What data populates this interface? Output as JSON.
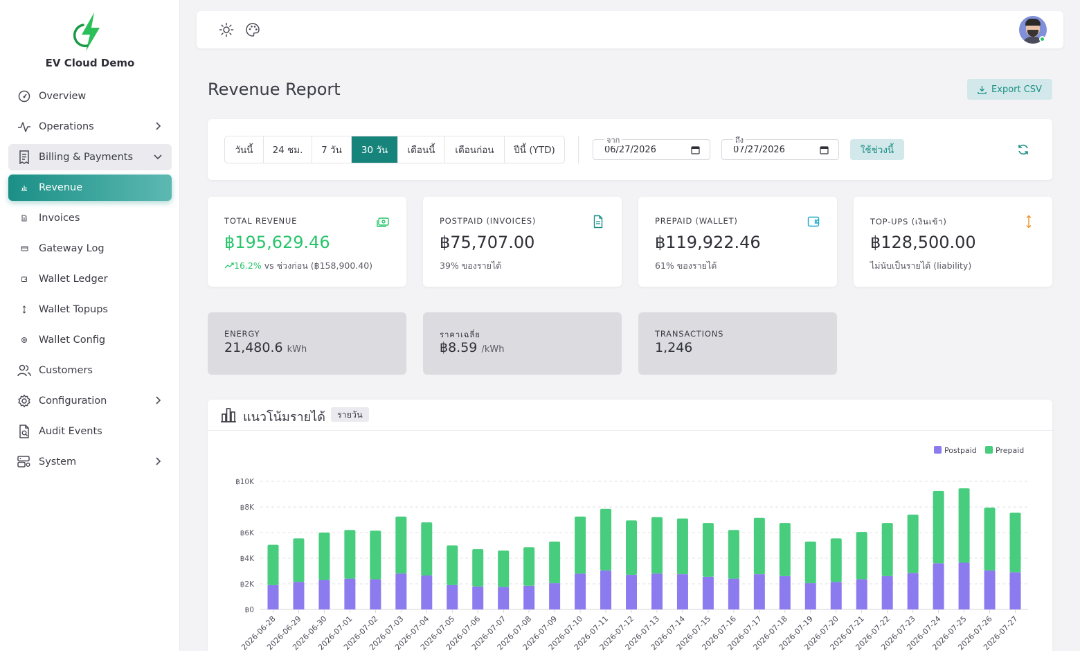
{
  "brand": {
    "name": "EV Cloud Demo"
  },
  "sidebar": {
    "items": [
      {
        "label": "Overview"
      },
      {
        "label": "Operations"
      },
      {
        "label": "Billing & Payments"
      },
      {
        "label": "Revenue"
      },
      {
        "label": "Invoices"
      },
      {
        "label": "Gateway Log"
      },
      {
        "label": "Wallet Ledger"
      },
      {
        "label": "Wallet Topups"
      },
      {
        "label": "Wallet Config"
      },
      {
        "label": "Customers"
      },
      {
        "label": "Configuration"
      },
      {
        "label": "Audit Events"
      },
      {
        "label": "System"
      }
    ]
  },
  "header": {
    "title": "Revenue Report",
    "export_label": "Export CSV"
  },
  "filters": {
    "ranges": [
      "วันนี้",
      "24 ชม.",
      "7 วัน",
      "30 วัน",
      "เดือนนี้",
      "เดือนก่อน",
      "ปีนี้ (YTD)"
    ],
    "active_range": "30 วัน",
    "from_label": "จาก",
    "from_value": "06/27/2026",
    "to_label": "ถึง",
    "to_value": "07/27/2026",
    "apply_label": "ใช้ช่วงนี้"
  },
  "stats": {
    "total": {
      "title": "TOTAL REVENUE",
      "value": "฿195,629.46",
      "trend": "16.2%",
      "sub": " vs ช่วงก่อน (฿158,900.40)"
    },
    "postpaid": {
      "title": "POSTPAID (INVOICES)",
      "value": "฿75,707.00",
      "sub": "39% ของรายได้"
    },
    "prepaid": {
      "title": "PREPAID (WALLET)",
      "value": "฿119,922.46",
      "sub": "61% ของรายได้"
    },
    "topups": {
      "title": "TOP-UPS (เงินเข้า)",
      "value": "฿128,500.00",
      "sub": "ไม่นับเป็นรายได้ (liability)"
    }
  },
  "mini": {
    "energy": {
      "title": "ENERGY",
      "value": "21,480.6",
      "unit": "kWh"
    },
    "avg": {
      "title": "ราคาเฉลี่ย",
      "value": "฿8.59",
      "unit": "/kWh"
    },
    "tx": {
      "title": "TRANSACTIONS",
      "value": "1,246"
    }
  },
  "chart": {
    "title": "แนวโน้มรายได้",
    "badge": "รายวัน"
  },
  "colors": {
    "accent": "#1b8f86",
    "postpaid": "#8b7bef",
    "prepaid": "#47cd7d"
  },
  "chart_data": {
    "type": "bar",
    "stacked": true,
    "legend": "top-right",
    "grid": true,
    "ylim": [
      0,
      10000
    ],
    "yticks": [
      "฿0",
      "฿2K",
      "฿4K",
      "฿6K",
      "฿8K",
      "฿10K"
    ],
    "categories": [
      "2026-06-28",
      "2026-06-29",
      "2026-06-30",
      "2026-07-01",
      "2026-07-02",
      "2026-07-03",
      "2026-07-04",
      "2026-07-05",
      "2026-07-06",
      "2026-07-07",
      "2026-07-08",
      "2026-07-09",
      "2026-07-10",
      "2026-07-11",
      "2026-07-12",
      "2026-07-13",
      "2026-07-14",
      "2026-07-15",
      "2026-07-16",
      "2026-07-17",
      "2026-07-18",
      "2026-07-19",
      "2026-07-20",
      "2026-07-21",
      "2026-07-22",
      "2026-07-23",
      "2026-07-24",
      "2026-07-25",
      "2026-07-26",
      "2026-07-27"
    ],
    "series": [
      {
        "name": "Postpaid",
        "values": [
          1900,
          2150,
          2300,
          2400,
          2350,
          2800,
          2650,
          1900,
          1800,
          1750,
          1850,
          2050,
          2800,
          3050,
          2700,
          2800,
          2750,
          2550,
          2400,
          2750,
          2600,
          2050,
          2150,
          2350,
          2600,
          2850,
          3600,
          3650,
          3050,
          2900
        ]
      },
      {
        "name": "Prepaid",
        "values": [
          3150,
          3400,
          3700,
          3800,
          3800,
          4450,
          4150,
          3100,
          2900,
          2850,
          3000,
          3250,
          4450,
          4800,
          4250,
          4400,
          4350,
          4200,
          3800,
          4400,
          4150,
          3250,
          3400,
          3700,
          4150,
          4550,
          5650,
          5800,
          4900,
          4650
        ]
      }
    ]
  }
}
